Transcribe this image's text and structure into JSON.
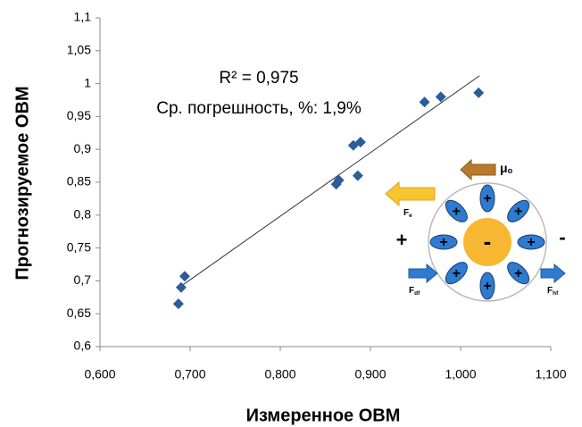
{
  "chart_data": {
    "type": "scatter",
    "x_label": "Измеренное ОВМ",
    "y_label": "Прогнозируемое ОВМ",
    "annotations": [
      "R² = 0,975",
      "Ср. погрешность, %: 1,9%"
    ],
    "color": "#2b5c9c",
    "x": [
      0.687,
      0.69,
      0.694,
      0.862,
      0.865,
      0.881,
      0.889,
      0.886,
      0.96,
      0.978,
      1.02
    ],
    "values": [
      0.665,
      0.69,
      0.707,
      0.847,
      0.853,
      0.906,
      0.911,
      0.86,
      0.972,
      0.98,
      0.986
    ],
    "trendline": {
      "x": [
        0.69,
        1.021
      ],
      "y": [
        0.692,
        1.012
      ]
    },
    "xlim": [
      0.6,
      1.1
    ],
    "ylim": [
      0.6,
      1.1
    ],
    "xticks": [
      {
        "value": 0.6,
        "label": "0,600"
      },
      {
        "value": 0.7,
        "label": "0,700"
      },
      {
        "value": 0.8,
        "label": "0,800"
      },
      {
        "value": 0.9,
        "label": "0,900"
      },
      {
        "value": 1.0,
        "label": "1,000"
      },
      {
        "value": 1.1,
        "label": "1,100"
      }
    ],
    "yticks": [
      {
        "value": 0.6,
        "label": "0,6"
      },
      {
        "value": 0.65,
        "label": "0,65"
      },
      {
        "value": 0.7,
        "label": "0,7"
      },
      {
        "value": 0.75,
        "label": "0,75"
      },
      {
        "value": 0.8,
        "label": "0,8"
      },
      {
        "value": 0.85,
        "label": "0,85"
      },
      {
        "value": 0.9,
        "label": "0,9"
      },
      {
        "value": 0.95,
        "label": "0,95"
      },
      1,
      {
        "value": 1.05,
        "label": "1,05"
      },
      {
        "value": 1.1,
        "label": "1,1"
      }
    ]
  },
  "diagram": {
    "center": "-",
    "charges": [
      "+",
      "+",
      "+",
      "+",
      "+",
      "+",
      "+",
      "+"
    ],
    "left_sign": "+",
    "right_sign": "-",
    "forces": [
      {
        "name": "μ",
        "sub": "o"
      },
      {
        "name": "F",
        "sub": "e"
      },
      {
        "name": "F",
        "sub": "df"
      },
      {
        "name": "F",
        "sub": "hf"
      }
    ]
  }
}
